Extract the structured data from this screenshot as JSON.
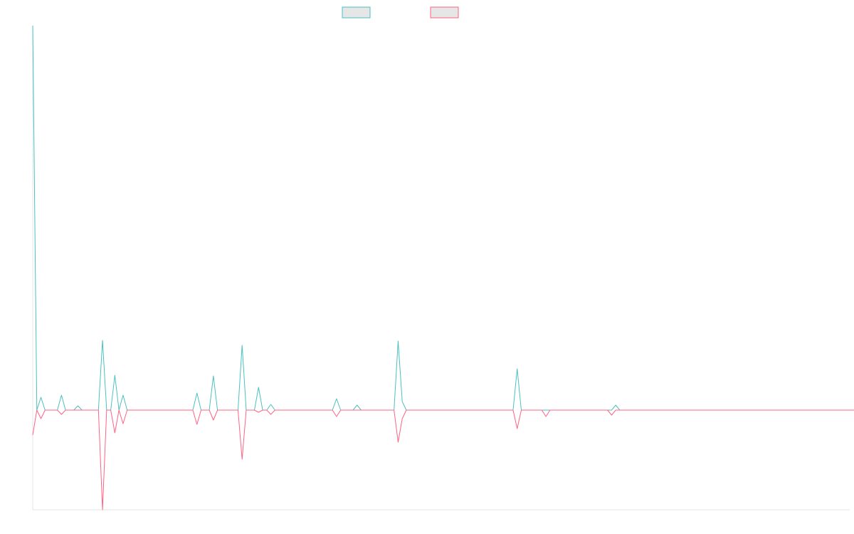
{
  "chart_data": {
    "type": "line",
    "title": "",
    "xlabel": "",
    "ylabel": "",
    "grid": false,
    "legend_position": "top-center",
    "ylim": [
      -140,
      540
    ],
    "baseline": 0,
    "x_count": 200,
    "series": [
      {
        "name": "",
        "color": "#4bc0c0",
        "legend_fill": "#e6e6e6",
        "values": [
          540,
          0,
          18,
          0,
          0,
          0,
          0,
          21,
          0,
          0,
          0,
          6,
          0,
          0,
          0,
          0,
          0,
          98,
          0,
          0,
          49,
          0,
          21,
          0,
          0,
          0,
          0,
          0,
          0,
          0,
          0,
          0,
          0,
          0,
          0,
          0,
          0,
          0,
          0,
          0,
          24,
          0,
          0,
          0,
          48,
          0,
          0,
          0,
          0,
          0,
          0,
          91,
          0,
          0,
          0,
          32,
          0,
          0,
          8,
          0,
          0,
          0,
          0,
          0,
          0,
          0,
          0,
          0,
          0,
          0,
          0,
          0,
          0,
          0,
          16,
          0,
          0,
          0,
          0,
          7,
          0,
          0,
          0,
          0,
          0,
          0,
          0,
          0,
          0,
          97,
          12,
          0,
          0,
          0,
          0,
          0,
          0,
          0,
          0,
          0,
          0,
          0,
          0,
          0,
          0,
          0,
          0,
          0,
          0,
          0,
          0,
          0,
          0,
          0,
          0,
          0,
          0,
          0,
          58,
          0,
          0,
          0,
          0,
          0,
          0,
          0,
          0,
          0,
          0,
          0,
          0,
          0,
          0,
          0,
          0,
          0,
          0,
          0,
          0,
          0,
          0,
          0,
          7,
          0,
          0,
          0,
          0,
          0,
          0,
          0,
          0,
          0,
          0,
          0,
          0,
          0,
          0,
          0,
          0,
          0,
          0,
          0,
          0,
          0,
          0,
          0,
          0,
          0,
          0,
          0,
          0,
          0,
          0,
          0,
          0,
          0,
          0,
          0,
          0,
          0,
          0,
          0,
          0,
          0,
          0,
          0,
          0,
          0,
          0,
          0,
          0,
          0,
          0,
          0,
          0,
          0,
          0,
          0,
          0,
          0,
          0,
          0,
          0,
          0,
          0,
          0,
          0
        ]
      },
      {
        "name": "",
        "color": "#ff6384",
        "legend_fill": "#e6e6e6",
        "values": [
          -35,
          0,
          -12,
          0,
          0,
          0,
          0,
          -6,
          0,
          0,
          0,
          0,
          0,
          0,
          0,
          0,
          0,
          -140,
          0,
          0,
          -32,
          0,
          -19,
          0,
          0,
          0,
          0,
          0,
          0,
          0,
          0,
          0,
          0,
          0,
          0,
          0,
          0,
          0,
          0,
          0,
          -20,
          0,
          0,
          0,
          -14,
          0,
          0,
          0,
          0,
          0,
          0,
          -69,
          0,
          0,
          0,
          -3,
          0,
          0,
          -6,
          0,
          0,
          0,
          0,
          0,
          0,
          0,
          0,
          0,
          0,
          0,
          0,
          0,
          0,
          0,
          -9,
          0,
          0,
          0,
          0,
          0,
          0,
          0,
          0,
          0,
          0,
          0,
          0,
          0,
          0,
          -45,
          -12,
          0,
          0,
          0,
          0,
          0,
          0,
          0,
          0,
          0,
          0,
          0,
          0,
          0,
          0,
          0,
          0,
          0,
          0,
          0,
          0,
          0,
          0,
          0,
          0,
          0,
          0,
          0,
          -26,
          0,
          0,
          0,
          0,
          0,
          0,
          -9,
          0,
          0,
          0,
          0,
          0,
          0,
          0,
          0,
          0,
          0,
          0,
          0,
          0,
          0,
          0,
          -7,
          0,
          0,
          0,
          0,
          0,
          0,
          0,
          0,
          0,
          0,
          0,
          0,
          0,
          0,
          0,
          0,
          0,
          0,
          0,
          0,
          0,
          0,
          0,
          0,
          0,
          0,
          0,
          0,
          0,
          0,
          0,
          0,
          0,
          0,
          0,
          0,
          0,
          0,
          0,
          0,
          0,
          0,
          0,
          0,
          0,
          0,
          0,
          0,
          0,
          0,
          0,
          0,
          0,
          0,
          0,
          0,
          0,
          0,
          0,
          0,
          0,
          0,
          0,
          0
        ]
      }
    ]
  }
}
